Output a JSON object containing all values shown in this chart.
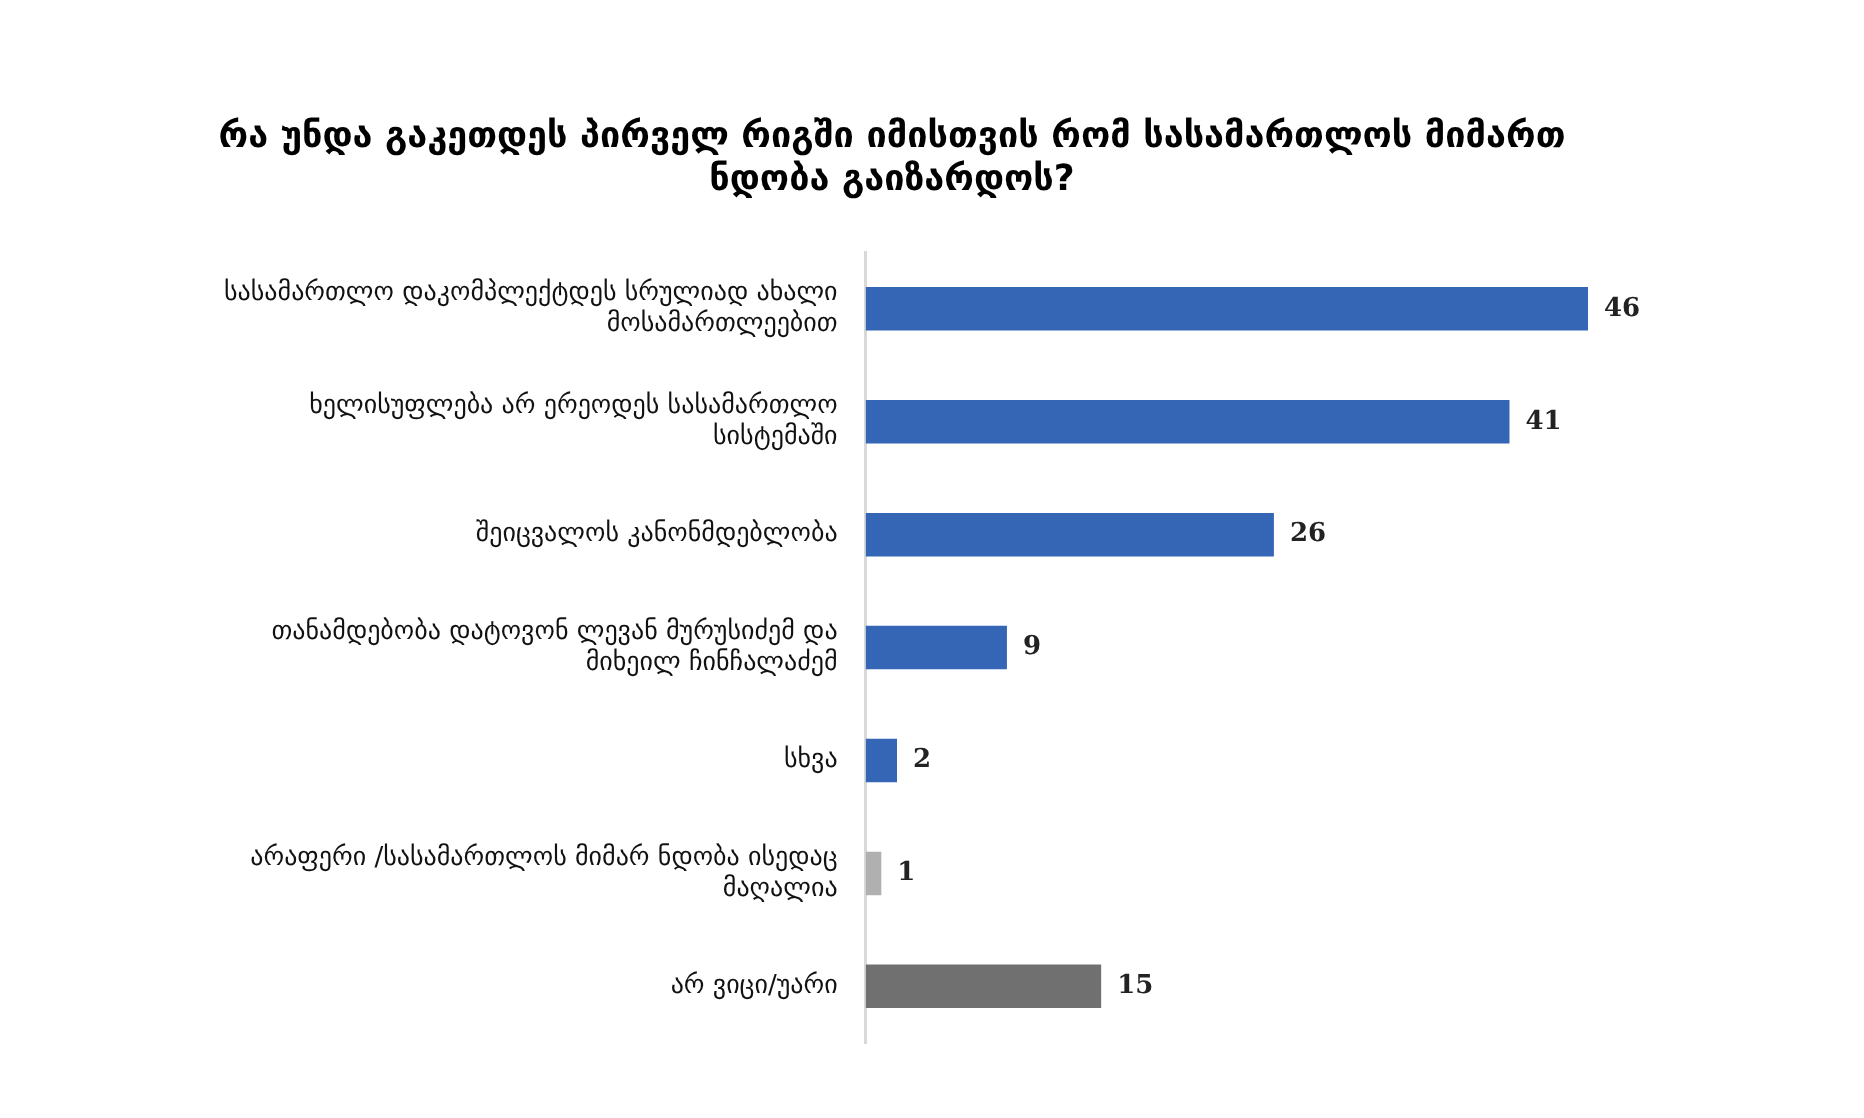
{
  "chart_data": {
    "type": "bar",
    "orientation": "horizontal",
    "title": "რა უნდა გაკეთდეს პირველ რიგში იმისთვის რომ სასამართლოს მიმართ ნდობა გაიზარდოს?",
    "categories": [
      "სასამართლო დაკომპლექტდეს სრულიად ახალი მოსამართლეებით",
      "ხელისუფლება არ ერეოდეს სასამართლო სისტემაში",
      "შეიცვალოს კანონმდებლობა",
      "თანამდებობა დატოვონ ლევან მურუსიძემ და მიხეილ ჩინჩალაძემ",
      "სხვა",
      "არაფერი /სასამართლოს მიმარ ნდობა ისედაც მაღალია",
      "არ ვიცი/უარი"
    ],
    "values": [
      46,
      41,
      26,
      9,
      2,
      1,
      15
    ],
    "colors": [
      "#3566b6",
      "#3566b6",
      "#3566b6",
      "#3566b6",
      "#3566b6",
      "#b0b0b0",
      "#707070"
    ],
    "data_labels": true,
    "tick_labels": "y",
    "grid": false,
    "legend": false
  }
}
